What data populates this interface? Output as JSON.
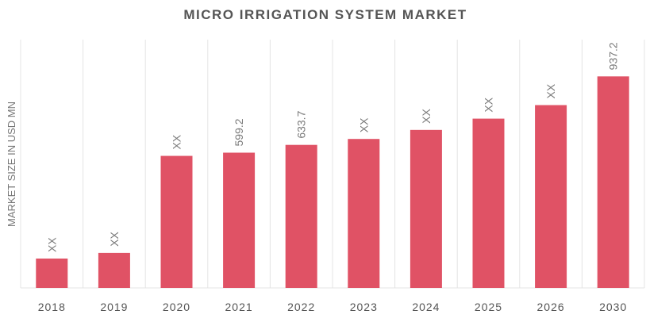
{
  "chart_data": {
    "type": "bar",
    "title": "MICRO IRRIGATION SYSTEM MARKET",
    "xlabel": "",
    "ylabel": "MARKET SIZE IN USD MN",
    "categories": [
      "2018",
      "2019",
      "2020",
      "2021",
      "2022",
      "2023",
      "2024",
      "2025",
      "2026",
      "2030"
    ],
    "values": [
      130,
      155,
      585,
      599.2,
      633.7,
      660,
      700,
      750,
      810,
      937.2
    ],
    "data_labels": [
      "XX",
      "XX",
      "XX",
      "599.2",
      "633.7",
      "XX",
      "XX",
      "XX",
      "XX",
      "937.2"
    ],
    "ylim": [
      0,
      1100
    ],
    "grid": "vertical category separators",
    "legend": "none",
    "bar_color": "#e05265"
  }
}
